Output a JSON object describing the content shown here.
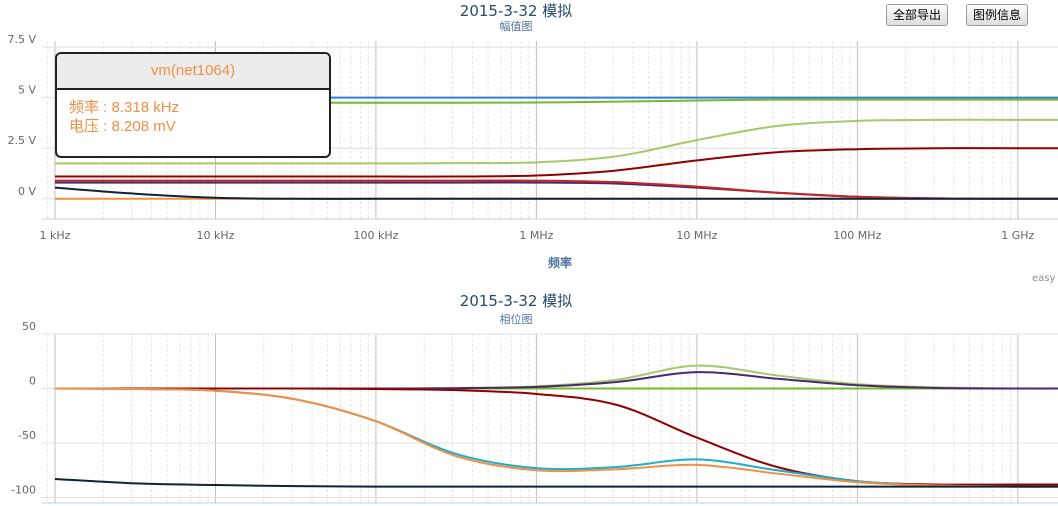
{
  "buttons": [
    "全部导出",
    "图例信息"
  ],
  "tooltip": {
    "title": "vm(net1064)",
    "lines": [
      "频率 : 8.318 kHz",
      "电压 : 8.208 mV"
    ]
  },
  "chart_data": [
    {
      "type": "line",
      "title": "2015-3-32 模拟",
      "subtitle": "幅值图",
      "x_label": "频率",
      "credit": "easy",
      "x_scale": "log",
      "xlim": [
        830,
        1780000000
      ],
      "ylim": [
        -1,
        7.8
      ],
      "xticks": [
        {
          "value": 1000,
          "label": "1 kHz"
        },
        {
          "value": 10000,
          "label": "10 kHz"
        },
        {
          "value": 100000,
          "label": "100 kHz"
        },
        {
          "value": 1000000,
          "label": "1 MHz"
        },
        {
          "value": 10000000,
          "label": "10 MHz"
        },
        {
          "value": 100000000,
          "label": "100 MHz"
        },
        {
          "value": 1000000000,
          "label": "1 GHz"
        }
      ],
      "yticks": [
        {
          "value": 7.5,
          "label": "7.5 V"
        },
        {
          "value": 5,
          "label": "5 V"
        },
        {
          "value": 2.5,
          "label": "2.5 V"
        },
        {
          "value": 0,
          "label": "0 V"
        }
      ],
      "grid": true,
      "x": [
        1000,
        3162,
        10000,
        31620,
        100000,
        316200,
        1000000,
        3162000,
        10000000,
        31620000,
        100000000,
        316200000,
        1000000000,
        1780000000
      ],
      "series": [
        {
          "color": "#2f7ed8",
          "values": [
            5,
            5,
            5,
            5,
            5,
            5,
            5,
            5,
            5,
            5,
            5,
            5,
            5,
            5
          ]
        },
        {
          "color": "#77b82a",
          "values": [
            4.75,
            4.75,
            4.75,
            4.75,
            4.75,
            4.75,
            4.76,
            4.8,
            4.86,
            4.9,
            4.9,
            4.9,
            4.9,
            4.9
          ]
        },
        {
          "color": "#a6c96a",
          "values": [
            1.75,
            1.75,
            1.75,
            1.75,
            1.75,
            1.76,
            1.8,
            2.1,
            2.9,
            3.6,
            3.85,
            3.9,
            3.9,
            3.9
          ]
        },
        {
          "color": "#910000",
          "values": [
            1.1,
            1.1,
            1.1,
            1.1,
            1.1,
            1.1,
            1.15,
            1.4,
            1.9,
            2.3,
            2.45,
            2.5,
            2.5,
            2.5
          ]
        },
        {
          "color": "#492970",
          "values": [
            0.8,
            0.8,
            0.8,
            0.8,
            0.8,
            0.8,
            0.8,
            0.75,
            0.55,
            0.3,
            0.1,
            0.02,
            0,
            0
          ]
        },
        {
          "color": "#c42525",
          "values": [
            0.9,
            0.9,
            0.9,
            0.9,
            0.9,
            0.9,
            0.9,
            0.82,
            0.6,
            0.3,
            0.1,
            0.02,
            0,
            0
          ]
        },
        {
          "color": "#f28f43",
          "values": [
            0,
            0,
            0,
            0,
            0,
            0,
            0,
            0,
            0,
            0,
            0,
            0,
            0,
            0
          ]
        },
        {
          "color": "#0d233a",
          "values": [
            0.55,
            0.25,
            0.05,
            0,
            0,
            0,
            0,
            0,
            0,
            0,
            0,
            0,
            0,
            0
          ]
        }
      ]
    },
    {
      "type": "line",
      "title": "2015-3-32 模拟",
      "subtitle": "相位图",
      "x_scale": "log",
      "xlim": [
        830,
        1780000000
      ],
      "ylim": [
        -105,
        50
      ],
      "xticks": [
        1000,
        10000,
        100000,
        1000000,
        10000000,
        100000000,
        1000000000
      ],
      "yticks": [
        50,
        0,
        -50,
        -100
      ],
      "grid": true,
      "x": [
        1000,
        3162,
        10000,
        31620,
        100000,
        316200,
        1000000,
        3162000,
        10000000,
        31620000,
        100000000,
        316200000,
        1000000000,
        1780000000
      ],
      "series": [
        {
          "color": "#2f7ed8",
          "values": [
            0,
            0,
            0,
            0,
            0,
            0,
            0,
            0,
            0,
            0,
            0,
            0,
            0,
            0
          ]
        },
        {
          "color": "#77b82a",
          "values": [
            0,
            0,
            0,
            0,
            0,
            0,
            0,
            0,
            0,
            0,
            0,
            0,
            0,
            0
          ]
        },
        {
          "color": "#a6c96a",
          "values": [
            0,
            0,
            0,
            0,
            0,
            0.5,
            2,
            8,
            21,
            12,
            4,
            1,
            0,
            0
          ]
        },
        {
          "color": "#492970",
          "values": [
            0,
            0,
            0,
            0,
            0,
            0.3,
            1.5,
            6,
            15,
            9,
            3,
            0.5,
            0,
            0
          ]
        },
        {
          "color": "#910000",
          "values": [
            0,
            0,
            0,
            0,
            -0.5,
            -1.5,
            -5,
            -15,
            -45,
            -72,
            -85,
            -88,
            -88,
            -88
          ]
        },
        {
          "color": "#1aadce",
          "values": [
            0,
            -0.5,
            -2,
            -10,
            -30,
            -60,
            -73,
            -72,
            -65,
            -75,
            -85,
            -89,
            -90,
            -90
          ]
        },
        {
          "color": "#f28f43",
          "values": [
            0,
            -0.5,
            -2,
            -10,
            -30,
            -62,
            -75,
            -74,
            -70,
            -78,
            -86,
            -89,
            -90,
            -90
          ]
        },
        {
          "color": "#0d233a",
          "values": [
            -83,
            -87,
            -88.5,
            -89.5,
            -90,
            -90,
            -90,
            -90,
            -90,
            -90,
            -90,
            -90,
            -90,
            -90
          ]
        }
      ]
    }
  ]
}
